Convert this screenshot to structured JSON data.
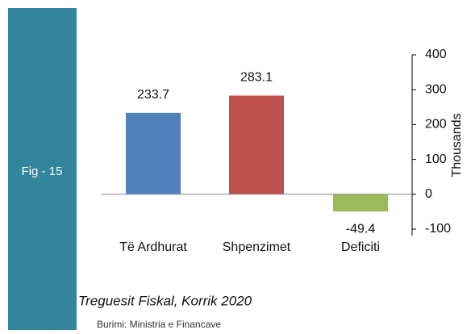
{
  "sidebar_label": "Fig - 15",
  "chart_data": {
    "type": "bar",
    "categories": [
      "Të Ardhurat",
      "Shpenzimet",
      "Deficiti"
    ],
    "values": [
      233.7,
      283.1,
      -49.4
    ],
    "colors": [
      "#4f81bd",
      "#c0504d",
      "#9bbb59"
    ],
    "ylim": [
      -100,
      400
    ],
    "yticks": [
      -100,
      0,
      100,
      200,
      300,
      400
    ],
    "y_axis_label": "Thousands",
    "y_axis_side": "right"
  },
  "caption": "Treguesit Fiskal, Korrik 2020",
  "source": "Burimi: Ministria e Financave"
}
